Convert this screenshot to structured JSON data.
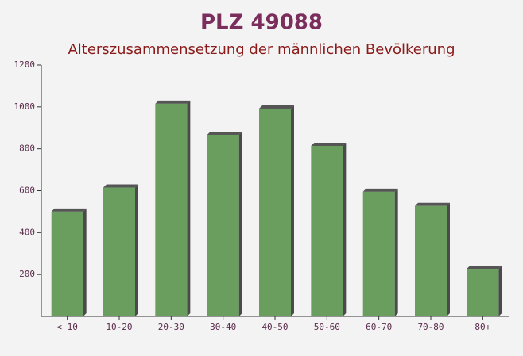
{
  "chart_data": {
    "type": "bar",
    "title": "PLZ 49088",
    "subtitle": "Alterszusammensetzung der männlichen Bevölkerung",
    "categories": [
      "< 10",
      "10-20",
      "20-30",
      "30-40",
      "40-50",
      "50-60",
      "60-70",
      "70-80",
      "80+"
    ],
    "values": [
      500,
      615,
      1015,
      867,
      992,
      814,
      595,
      527,
      227
    ],
    "color": "#6a9e5e",
    "ylim": [
      0,
      1200
    ],
    "yticks": [
      200,
      400,
      600,
      800,
      1000,
      1200
    ]
  }
}
